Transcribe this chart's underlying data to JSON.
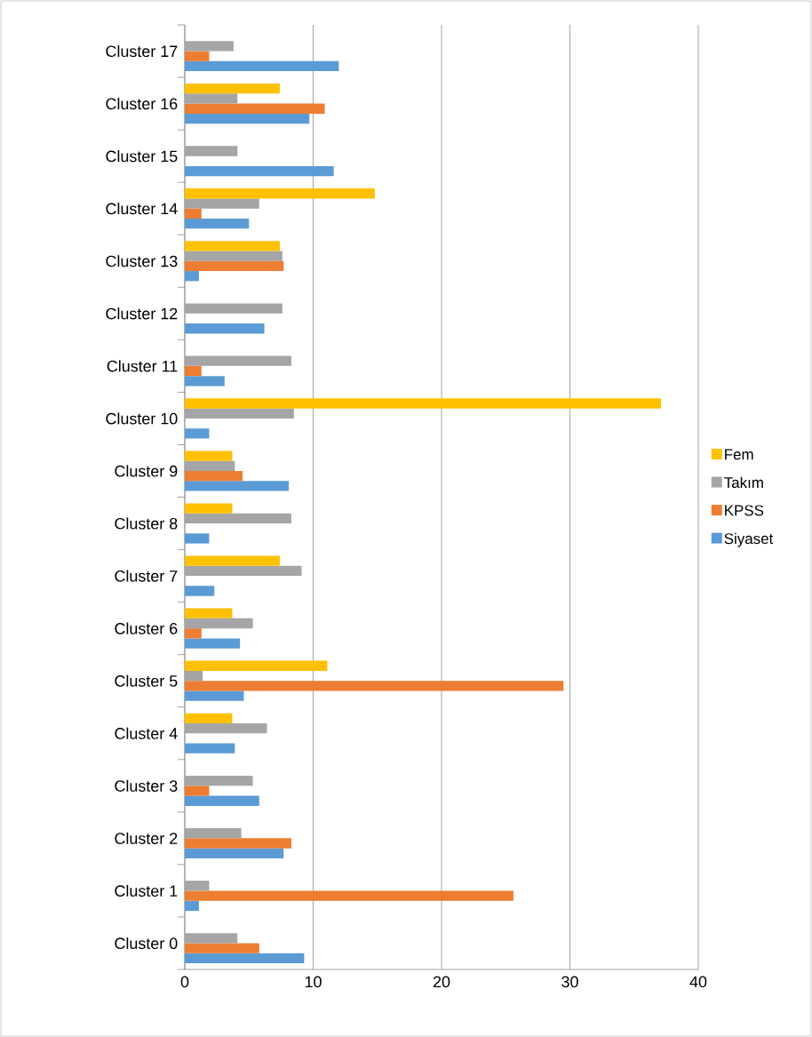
{
  "chart_data": {
    "type": "bar",
    "orientation": "horizontal",
    "categories": [
      "Cluster 17",
      "Cluster 16",
      "Cluster 15",
      "Cluster 14",
      "Cluster 13",
      "Cluster 12",
      "Cluster 11",
      "Cluster 10",
      "Cluster 9",
      "Cluster 8",
      "Cluster 7",
      "Cluster 6",
      "Cluster 5",
      "Cluster 4",
      "Cluster 3",
      "Cluster 2",
      "Cluster 1",
      "Cluster 0"
    ],
    "series": [
      {
        "name": "Siyaset",
        "color": "#5b9bd5",
        "values": [
          12.0,
          9.7,
          11.6,
          5.0,
          1.1,
          6.2,
          3.1,
          1.9,
          8.1,
          1.9,
          2.3,
          4.3,
          4.6,
          3.9,
          5.8,
          7.7,
          1.1,
          9.3
        ]
      },
      {
        "name": "KPSS",
        "color": "#ed7d31",
        "values": [
          1.9,
          10.9,
          null,
          1.3,
          7.7,
          null,
          1.3,
          null,
          4.5,
          null,
          null,
          1.3,
          29.5,
          null,
          1.9,
          8.3,
          25.6,
          5.8
        ]
      },
      {
        "name": "Takım",
        "color": "#a5a5a5",
        "values": [
          3.8,
          4.1,
          4.1,
          5.8,
          7.6,
          7.6,
          8.3,
          8.5,
          3.9,
          8.3,
          9.1,
          5.3,
          1.4,
          6.4,
          5.3,
          4.4,
          1.9,
          4.1
        ]
      },
      {
        "name": "Fem",
        "color": "#ffc000",
        "values": [
          null,
          7.4,
          null,
          14.8,
          7.4,
          null,
          null,
          37.1,
          3.7,
          3.7,
          7.4,
          3.7,
          11.1,
          3.7,
          null,
          null,
          null,
          null
        ]
      }
    ],
    "xlim": [
      0,
      40
    ],
    "xticks": [
      0,
      10,
      20,
      30,
      40
    ],
    "grid": "x",
    "legend": "right"
  }
}
